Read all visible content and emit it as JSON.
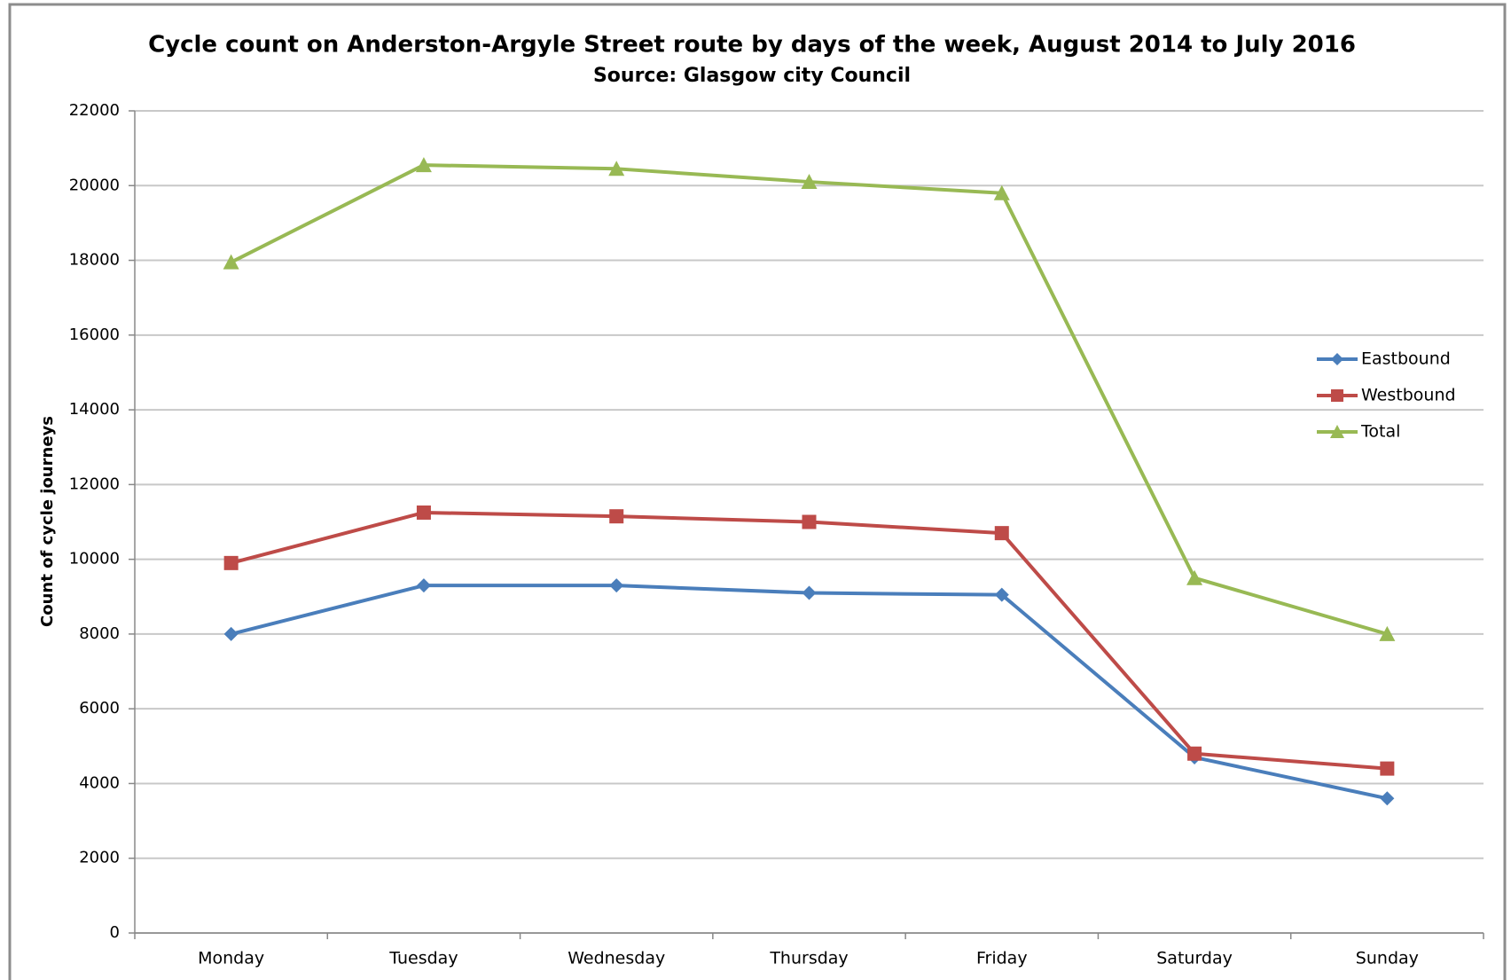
{
  "chart_data": {
    "type": "line",
    "title": "Cycle count on Anderston-Argyle Street route by days of the week, August 2014 to July 2016",
    "subtitle": "Source: Glasgow city Council",
    "y_label": "Count of cycle journeys",
    "categories": [
      "Monday",
      "Tuesday",
      "Wednesday",
      "Thursday",
      "Friday",
      "Saturday",
      "Sunday"
    ],
    "series": [
      {
        "name": "Eastbound",
        "color": "#4a7ebb",
        "marker": "diamond",
        "values": [
          8000,
          9300,
          9300,
          9100,
          9050,
          4700,
          3600
        ]
      },
      {
        "name": "Westbound",
        "color": "#be4b48",
        "marker": "square",
        "values": [
          9900,
          11250,
          11150,
          11000,
          10700,
          4800,
          4400
        ]
      },
      {
        "name": "Total",
        "color": "#98b954",
        "marker": "triangle",
        "values": [
          17950,
          20550,
          20450,
          20100,
          19800,
          9500,
          8000
        ]
      }
    ],
    "ylim": [
      0,
      22000
    ],
    "yticks": [
      0,
      2000,
      4000,
      6000,
      8000,
      10000,
      12000,
      14000,
      16000,
      18000,
      20000,
      22000
    ],
    "grid": true,
    "legend": "right"
  }
}
